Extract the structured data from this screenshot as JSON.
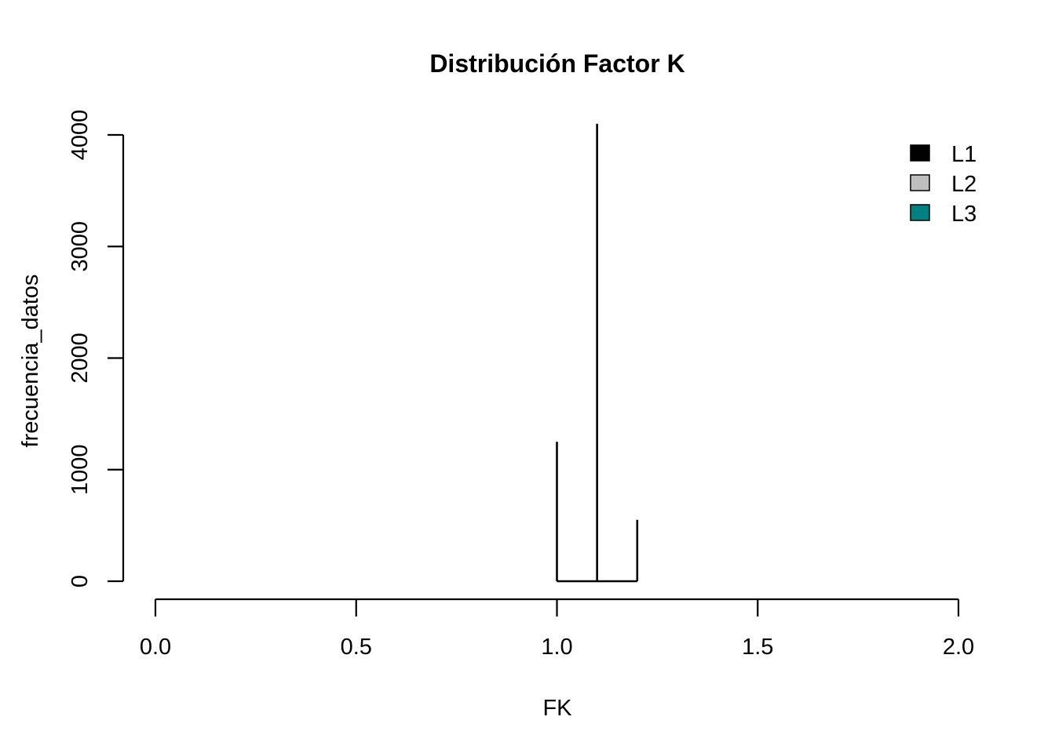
{
  "chart_data": {
    "type": "line",
    "title": "Distribución Factor K",
    "xlabel": "FK",
    "ylabel": "frecuencia_datos",
    "xlim": [
      0,
      2
    ],
    "ylim": [
      0,
      4000
    ],
    "x_ticks": [
      "0.0",
      "0.5",
      "1.0",
      "1.5",
      "2.0"
    ],
    "y_ticks": [
      "0",
      "1000",
      "2000",
      "3000",
      "4000"
    ],
    "grid": false,
    "legend_position": "top-right",
    "legend": [
      {
        "name": "L1",
        "color": "#000000"
      },
      {
        "name": "L2",
        "color": "#bebebe"
      },
      {
        "name": "L3",
        "color": "#008080"
      }
    ],
    "series": [
      {
        "type": "histogram-spikes",
        "x": [
          1.0,
          1.1,
          1.2
        ],
        "y": [
          1250,
          4100,
          550
        ]
      }
    ]
  }
}
